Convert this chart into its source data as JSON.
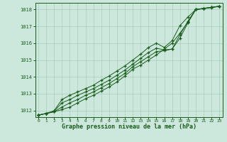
{
  "xlabel": "Graphe pression niveau de la mer (hPa)",
  "background_color": "#cce8dd",
  "grid_color": "#aaccbb",
  "line_color": "#1a5c1a",
  "xlim": [
    -0.4,
    23.4
  ],
  "ylim": [
    1011.6,
    1018.4
  ],
  "yticks": [
    1012,
    1013,
    1014,
    1015,
    1016,
    1017,
    1018
  ],
  "xticks": [
    0,
    1,
    2,
    3,
    4,
    5,
    6,
    7,
    8,
    9,
    10,
    11,
    12,
    13,
    14,
    15,
    16,
    17,
    18,
    19,
    20,
    21,
    22,
    23
  ],
  "series": [
    [
      1011.72,
      1011.82,
      1011.92,
      1012.05,
      1012.2,
      1012.45,
      1012.7,
      1012.9,
      1013.15,
      1013.4,
      1013.7,
      1014.05,
      1014.45,
      1014.7,
      1015.0,
      1015.3,
      1015.65,
      1016.0,
      1016.6,
      1017.25,
      1018.0,
      1018.05,
      1018.12,
      1018.18
    ],
    [
      1011.72,
      1011.82,
      1011.92,
      1012.2,
      1012.45,
      1012.65,
      1012.9,
      1013.1,
      1013.35,
      1013.6,
      1013.9,
      1014.2,
      1014.6,
      1014.9,
      1015.2,
      1015.5,
      1015.55,
      1015.65,
      1016.3,
      1017.2,
      1018.0,
      1018.07,
      1018.13,
      1018.2
    ],
    [
      1011.72,
      1011.82,
      1011.95,
      1012.45,
      1012.65,
      1012.9,
      1013.1,
      1013.3,
      1013.55,
      1013.8,
      1014.1,
      1014.4,
      1014.75,
      1015.1,
      1015.45,
      1015.7,
      1015.6,
      1015.65,
      1016.5,
      1017.3,
      1018.0,
      1018.07,
      1018.13,
      1018.2
    ],
    [
      1011.72,
      1011.82,
      1011.98,
      1012.65,
      1012.9,
      1013.1,
      1013.3,
      1013.5,
      1013.8,
      1014.05,
      1014.35,
      1014.65,
      1015.0,
      1015.35,
      1015.75,
      1016.0,
      1015.75,
      1016.15,
      1017.05,
      1017.55,
      1018.0,
      1018.07,
      1018.13,
      1018.2
    ]
  ]
}
